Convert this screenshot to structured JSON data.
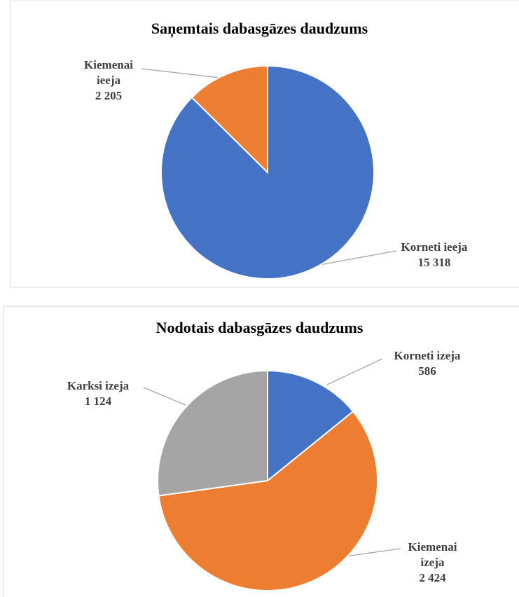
{
  "chart_data": [
    {
      "type": "pie",
      "title": "Saņemtais dabasgāzes daudzums",
      "categories": [
        "Korneti ieeja",
        "Kiemenai ieeja"
      ],
      "values": [
        15318,
        2205
      ],
      "value_labels": [
        "15 318",
        "2 205"
      ],
      "colors": [
        "#4472c4",
        "#ed7d31"
      ]
    },
    {
      "type": "pie",
      "title": "Nodotais dabasgāzes daudzums",
      "categories": [
        "Korneti izeja",
        "Kiemenai izeja",
        "Karksi izeja"
      ],
      "values": [
        586,
        2424,
        1124
      ],
      "value_labels": [
        "586",
        "2 424",
        "1 124"
      ],
      "colors": [
        "#4472c4",
        "#ed7d31",
        "#a5a5a5"
      ]
    }
  ]
}
